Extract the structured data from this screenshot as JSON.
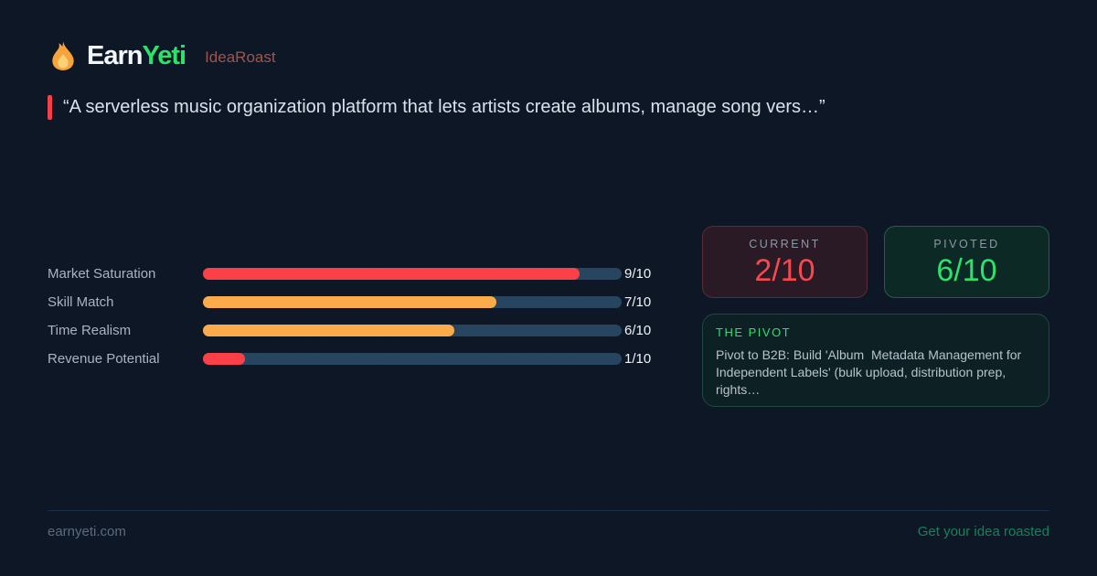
{
  "brand": {
    "name_primary": "Earn",
    "name_accent": "Yeti",
    "product": "IdeaRoast"
  },
  "quote": {
    "text": "“A serverless music organization platform that lets artists create albums, manage song vers…”"
  },
  "chart_data": {
    "type": "bar",
    "orientation": "horizontal",
    "title": "",
    "categories": [
      "Market Saturation",
      "Skill Match",
      "Time Realism",
      "Revenue Potential"
    ],
    "values": [
      9,
      7,
      6,
      1
    ],
    "max": 10,
    "value_labels": [
      "9/10",
      "7/10",
      "6/10",
      "1/10"
    ],
    "bar_colors": [
      "#fb4048",
      "#fcab4a",
      "#fcab4a",
      "#fb4048"
    ],
    "track_color": "#28455f",
    "grid": false,
    "legend": false
  },
  "scores": {
    "current": {
      "label": "CURRENT",
      "value": "2/10",
      "color": "#f8484e"
    },
    "pivoted": {
      "label": "PIVOTED",
      "value": "6/10",
      "color": "#2ce26a"
    }
  },
  "pivot": {
    "label": "THE PIVOT",
    "text": "Pivot to B2B: Build 'Album  Metadata Management for Independent Labels' (bulk upload, distribution prep, rights…"
  },
  "footer": {
    "site": "earnyeti.com",
    "cta": "Get your idea roasted"
  },
  "colors": {
    "background": "#0d1726",
    "brand_accent_green": "#2ce26a",
    "product_red": "#a0554c",
    "quote_accent": "#f4404a",
    "bar_red": "#fb4048",
    "bar_orange": "#fcab4a",
    "bar_track": "#28455f",
    "current_card_border": "#5a2d36",
    "pivoted_card_border": "#1d6148",
    "cta_green": "#16815a"
  }
}
